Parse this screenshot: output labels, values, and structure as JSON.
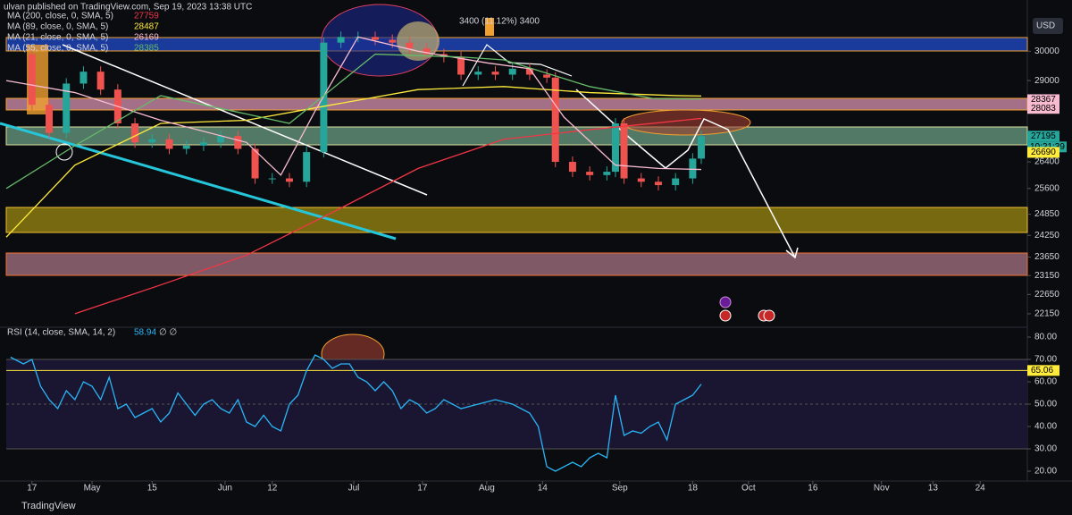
{
  "header": "ulvan published on TradingView.com, Sep 19, 2023 13:38 UTC",
  "currency": "USD",
  "footer": "TradingView",
  "range_note": "3400 (11.12%) 3400",
  "chart_data": [
    {
      "type": "candlestick",
      "log_scale": true,
      "up_color": "#26a69a",
      "down_color": "#ef5350",
      "xlim": [
        -6,
        232
      ],
      "ylim": [
        21830,
        31830
      ],
      "yticks": [
        22150,
        22650,
        23150,
        23650,
        24250,
        24850,
        25600,
        26400,
        29000,
        30000
      ],
      "xticks": [
        {
          "value": 0,
          "label": "17"
        },
        {
          "value": 14,
          "label": "May"
        },
        {
          "value": 28,
          "label": "15"
        },
        {
          "value": 45,
          "label": "Jun"
        },
        {
          "value": 56,
          "label": "12"
        },
        {
          "value": 75,
          "label": "Jul"
        },
        {
          "value": 91,
          "label": "17"
        },
        {
          "value": 106,
          "label": "Aug"
        },
        {
          "value": 119,
          "label": "14"
        },
        {
          "value": 137,
          "label": "Sep"
        },
        {
          "value": 154,
          "label": "18"
        },
        {
          "value": 167,
          "label": "Oct"
        },
        {
          "value": 182,
          "label": "16"
        },
        {
          "value": 198,
          "label": "Nov"
        },
        {
          "value": 210,
          "label": "13"
        },
        {
          "value": 221,
          "label": "24"
        }
      ],
      "x": [
        -5,
        0,
        4,
        8,
        12,
        16,
        20,
        24,
        28,
        32,
        36,
        40,
        44,
        48,
        52,
        56,
        60,
        64,
        68,
        72,
        76,
        80,
        84,
        88,
        92,
        96,
        100,
        104,
        108,
        112,
        116,
        120,
        122,
        126,
        130,
        134,
        136,
        138,
        142,
        146,
        150,
        154,
        156
      ],
      "values": [
        29900,
        28200,
        27300,
        28900,
        29300,
        28700,
        27600,
        27000,
        27100,
        26800,
        26900,
        27000,
        27200,
        26800,
        25900,
        25900,
        25800,
        26700,
        30300,
        30500,
        30500,
        30400,
        30300,
        30100,
        29900,
        29800,
        29200,
        29300,
        29200,
        29400,
        29200,
        29100,
        26400,
        26100,
        26000,
        26100,
        27600,
        25900,
        25800,
        25700,
        25900,
        26500,
        27195
      ],
      "series": [
        {
          "name": "MA (200, close, 0, SMA, 5)",
          "last": 27759,
          "color": "#f23645",
          "x": [
            10,
            30,
            50,
            70,
            90,
            110,
            130,
            156
          ],
          "values": [
            22150,
            22900,
            23700,
            24900,
            26200,
            27100,
            27400,
            27759
          ]
        },
        {
          "name": "MA (89, close, 0, SMA, 5)",
          "last": 28487,
          "color": "#ffeb3b",
          "x": [
            -6,
            10,
            30,
            50,
            70,
            90,
            110,
            130,
            150,
            156
          ],
          "values": [
            24200,
            26300,
            27600,
            27700,
            28200,
            28700,
            28800,
            28600,
            28500,
            28487
          ]
        },
        {
          "name": "MA (21, close, 0, SMA, 5)",
          "last": 26169,
          "color": "#f8bbd0",
          "x": [
            -6,
            10,
            30,
            50,
            58,
            66,
            76,
            90,
            106,
            116,
            124,
            136,
            146,
            156
          ],
          "values": [
            29000,
            28600,
            27700,
            27000,
            26000,
            28000,
            30500,
            30000,
            29600,
            29400,
            27800,
            26300,
            26200,
            26169
          ]
        },
        {
          "name": "MA (55, close, 0, SMA, 5)",
          "last": 28385,
          "color": "#66bb6a",
          "x": [
            -6,
            10,
            30,
            50,
            60,
            80,
            100,
            110,
            130,
            145,
            156
          ],
          "values": [
            25600,
            26900,
            28500,
            27900,
            27600,
            29900,
            29800,
            29700,
            28800,
            28400,
            28385
          ]
        }
      ],
      "price_markers": [
        {
          "value": 28367,
          "color": "#f8bbd0"
        },
        {
          "value": 28083,
          "color": "#f8bbd0"
        },
        {
          "value": 27195,
          "color": "#26a69a",
          "countdown": "10:21:39"
        },
        {
          "value": 26690,
          "color": "#ffeb3b"
        }
      ]
    },
    {
      "type": "line",
      "title": "RSI (14, close, SMA, 14, 2)",
      "last": 58.94,
      "suffix": "∅ ∅",
      "color": "#29b6f6",
      "xlim": [
        -6,
        232
      ],
      "ylim": [
        16.8,
        83.6
      ],
      "yticks": [
        {
          "value": 20,
          "label": "20.00"
        },
        {
          "value": 30,
          "label": "30.00"
        },
        {
          "value": 40,
          "label": "40.00"
        },
        {
          "value": 50,
          "label": "50.00"
        },
        {
          "value": 60,
          "label": "60.00"
        },
        {
          "value": 70,
          "label": "70.00"
        },
        {
          "value": 80,
          "label": "80.00"
        }
      ],
      "marker": {
        "value": 65.06,
        "label": "65.06",
        "color": "#ffeb3b"
      },
      "x": [
        -5,
        -2,
        0,
        2,
        4,
        6,
        8,
        10,
        12,
        14,
        16,
        18,
        20,
        22,
        24,
        26,
        28,
        30,
        32,
        34,
        36,
        38,
        40,
        42,
        44,
        46,
        48,
        50,
        52,
        54,
        56,
        58,
        60,
        62,
        64,
        66,
        68,
        70,
        72,
        74,
        76,
        78,
        80,
        82,
        84,
        86,
        88,
        90,
        92,
        94,
        96,
        98,
        100,
        104,
        108,
        112,
        116,
        118,
        120,
        122,
        124,
        126,
        128,
        130,
        132,
        134,
        136,
        138,
        140,
        142,
        144,
        146,
        148,
        150,
        152,
        154,
        156
      ],
      "values": [
        71,
        68,
        70,
        58,
        52,
        48,
        56,
        52,
        60,
        58,
        52,
        62,
        48,
        50,
        44,
        46,
        48,
        42,
        46,
        55,
        50,
        45,
        50,
        52,
        48,
        46,
        52,
        42,
        40,
        45,
        40,
        38,
        50,
        54,
        65,
        72,
        70,
        66,
        68,
        68,
        62,
        60,
        56,
        60,
        56,
        48,
        52,
        50,
        46,
        48,
        52,
        50,
        48,
        50,
        52,
        50,
        46,
        40,
        22,
        20,
        22,
        24,
        22,
        26,
        28,
        26,
        54,
        36,
        38,
        37,
        40,
        42,
        34,
        50,
        52,
        54,
        58.94
      ]
    }
  ]
}
